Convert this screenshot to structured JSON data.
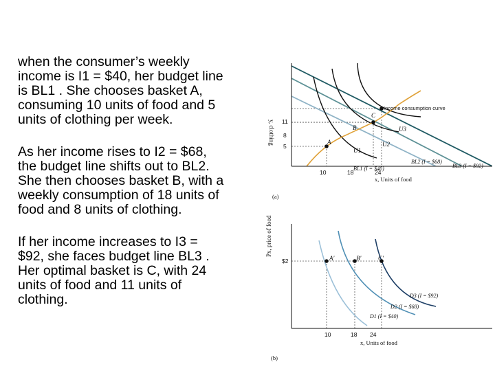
{
  "paragraphs": [
    {
      "lines": [
        "when the consumer’s weekly",
        "income is I1 = $40, her budget line",
        "is BL1 . She chooses basket A,",
        "consuming 10 units of food and 5",
        "units of clothing per week."
      ]
    },
    {
      "lines": [
        "As her income rises to I2 = $68,",
        "the budget line shifts out to BL2.",
        "She then chooses basket B, with a",
        "weekly consumption of 18 units of",
        "food and 8 units of clothing."
      ]
    },
    {
      "lines": [
        "If her income increases to I3 =",
        "$92, she faces budget line BL3 .",
        "Her optimal basket is C, with 24",
        "units of food and 11 units of",
        "clothing."
      ]
    }
  ],
  "figure": {
    "panel_a": {
      "ylabel": "y, clothing",
      "xlabel": "x, Units of food",
      "y_ticks": [
        "11",
        "8",
        "5"
      ],
      "x_ticks": [
        "10",
        "18",
        "24"
      ],
      "points": [
        "A",
        "B",
        "C"
      ],
      "curves": [
        "U1",
        "U2",
        "U3"
      ],
      "budget_lines": [
        "BL1 (I = $40)",
        "BL2 (I = $68)",
        "BL3 (I = $92)"
      ],
      "icc_label": "Income consumption curve",
      "panel_label": "(a)",
      "colors": {
        "bl1": "#8fb3c6",
        "bl2": "#5d9196",
        "bl3": "#1f5a63",
        "icc": "#e0a23a"
      }
    },
    "panel_b": {
      "ylabel": "Px, price of food",
      "xlabel": "x, Units of food",
      "y_tick": "$2",
      "x_ticks": [
        "10",
        "18",
        "24"
      ],
      "points": [
        "A'",
        "B'",
        "C'"
      ],
      "demand_curves": [
        "D3 (I = $92)",
        "D2 (I = $68)",
        "D1 (I = $40)"
      ],
      "panel_label": "(b)",
      "colors": {
        "d1": "#9cc0d8",
        "d2": "#4f8fb5",
        "d3": "#1e3f66"
      }
    }
  }
}
